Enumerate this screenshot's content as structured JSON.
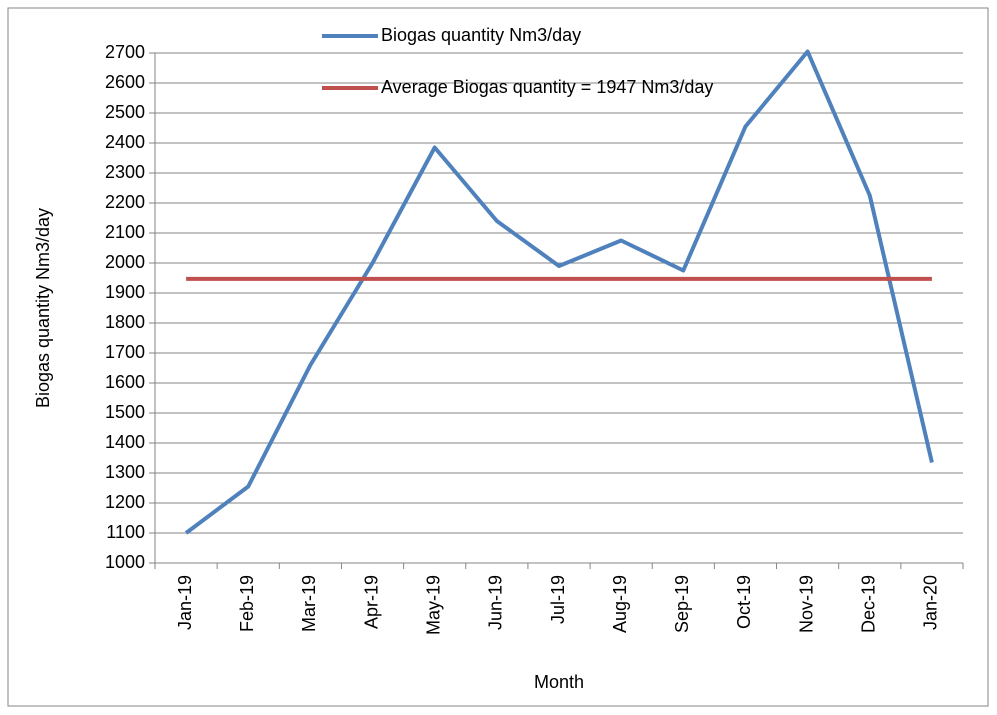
{
  "chart_data": {
    "type": "line",
    "x_label": "Month",
    "y_label": "Biogas quantity Nm3/day",
    "categories": [
      "Jan-19",
      "Feb-19",
      "Mar-19",
      "Apr-19",
      "May-19",
      "Jun-19",
      "Jul-19",
      "Aug-19",
      "Sep-19",
      "Oct-19",
      "Nov-19",
      "Dec-19",
      "Jan-20"
    ],
    "series": [
      {
        "name": "Biogas quantity Nm3/day",
        "color": "#4f81bd",
        "values": [
          1100,
          1255,
          1660,
          2000,
          2385,
          2140,
          1990,
          2075,
          1975,
          2455,
          2705,
          2225,
          1335
        ]
      },
      {
        "name": "Average Biogas quantity = 1947 Nm3/day",
        "color": "#c0504d",
        "values": [
          1947,
          1947,
          1947,
          1947,
          1947,
          1947,
          1947,
          1947,
          1947,
          1947,
          1947,
          1947,
          1947
        ]
      }
    ],
    "ylim": [
      1000,
      2700
    ],
    "yticks": [
      1000,
      1100,
      1200,
      1300,
      1400,
      1500,
      1600,
      1700,
      1800,
      1900,
      2000,
      2100,
      2200,
      2300,
      2400,
      2500,
      2600,
      2700
    ],
    "grid": true
  }
}
